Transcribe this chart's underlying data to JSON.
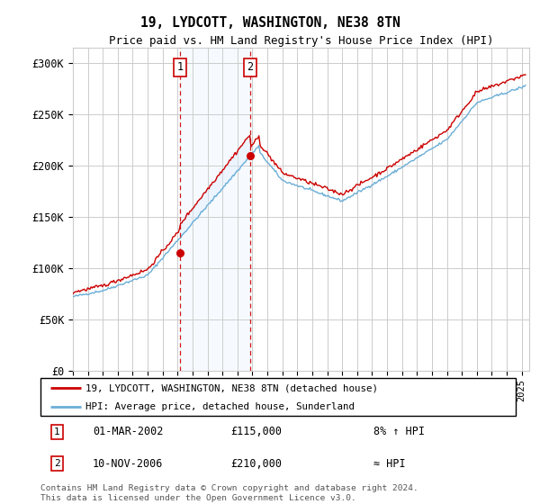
{
  "title": "19, LYDCOTT, WASHINGTON, NE38 8TN",
  "subtitle": "Price paid vs. HM Land Registry's House Price Index (HPI)",
  "ylabel_ticks": [
    "£0",
    "£50K",
    "£100K",
    "£150K",
    "£200K",
    "£250K",
    "£300K"
  ],
  "ytick_values": [
    0,
    50000,
    100000,
    150000,
    200000,
    250000,
    300000
  ],
  "ylim": [
    0,
    315000
  ],
  "xlim_start": 1995.0,
  "xlim_end": 2025.5,
  "sale1": {
    "date_num": 2002.17,
    "price": 115000,
    "label": "1"
  },
  "sale2": {
    "date_num": 2006.86,
    "price": 210000,
    "label": "2"
  },
  "legend_line1": "19, LYDCOTT, WASHINGTON, NE38 8TN (detached house)",
  "legend_line2": "HPI: Average price, detached house, Sunderland",
  "table_row1": [
    "1",
    "01-MAR-2002",
    "£115,000",
    "8% ↑ HPI"
  ],
  "table_row2": [
    "2",
    "10-NOV-2006",
    "£210,000",
    "≈ HPI"
  ],
  "footnote1": "Contains HM Land Registry data © Crown copyright and database right 2024.",
  "footnote2": "This data is licensed under the Open Government Licence v3.0.",
  "hpi_color": "#6baed6",
  "price_color": "#cc0000",
  "shading_color": "#ddeeff",
  "vline_color": "#cc0000",
  "grid_color": "#cccccc",
  "background_color": "#ffffff"
}
